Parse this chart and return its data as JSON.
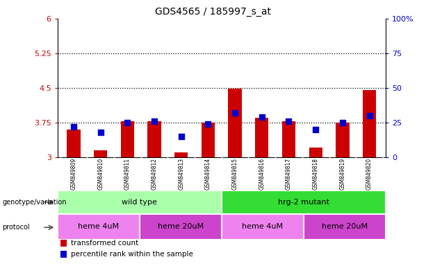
{
  "title": "GDS4565 / 185997_s_at",
  "samples": [
    "GSM849809",
    "GSM849810",
    "GSM849811",
    "GSM849812",
    "GSM849813",
    "GSM849814",
    "GSM849815",
    "GSM849816",
    "GSM849817",
    "GSM849818",
    "GSM849819",
    "GSM849820"
  ],
  "red_values": [
    3.6,
    3.15,
    3.78,
    3.78,
    3.1,
    3.75,
    4.48,
    3.85,
    3.78,
    3.2,
    3.75,
    4.45
  ],
  "blue_values": [
    22,
    18,
    25,
    26,
    15,
    24,
    32,
    29,
    26,
    20,
    25,
    30
  ],
  "ylim_left": [
    3.0,
    6.0
  ],
  "ylim_right": [
    0,
    100
  ],
  "yticks_left": [
    3.0,
    3.75,
    4.5,
    5.25,
    6.0
  ],
  "yticks_right": [
    0,
    25,
    50,
    75,
    100
  ],
  "ytick_labels_left": [
    "3",
    "3.75",
    "4.5",
    "5.25",
    "6"
  ],
  "ytick_labels_right": [
    "0",
    "25",
    "50",
    "75",
    "100%"
  ],
  "hlines": [
    3.75,
    4.5,
    5.25
  ],
  "bar_bottom": 3.0,
  "bar_color": "#cc0000",
  "dot_color": "#0000cc",
  "plot_bg": "#ffffff",
  "genotype_groups": [
    {
      "label": "wild type",
      "start": 0,
      "end": 5,
      "color": "#aaffaa"
    },
    {
      "label": "hrg-2 mutant",
      "start": 6,
      "end": 11,
      "color": "#33dd33"
    }
  ],
  "protocol_groups": [
    {
      "label": "heme 4uM",
      "start": 0,
      "end": 2,
      "color": "#ee82ee"
    },
    {
      "label": "heme 20uM",
      "start": 3,
      "end": 5,
      "color": "#cc44cc"
    },
    {
      "label": "heme 4uM",
      "start": 6,
      "end": 8,
      "color": "#ee82ee"
    },
    {
      "label": "heme 20uM",
      "start": 9,
      "end": 11,
      "color": "#cc44cc"
    }
  ],
  "legend_items": [
    {
      "label": "transformed count",
      "color": "#cc0000"
    },
    {
      "label": "percentile rank within the sample",
      "color": "#0000cc"
    }
  ],
  "left_label_color": "#cc0000",
  "right_label_color": "#0000cc",
  "dot_size": 30,
  "bar_width": 0.5,
  "sample_box_color": "#c8c8c8",
  "sample_box_divider": "#ffffff"
}
